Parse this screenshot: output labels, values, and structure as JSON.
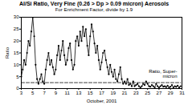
{
  "chart_data": {
    "type": "line",
    "title": "Al/Si Ratio, Very Fine (0.26 > Dp > 0.09 micron) Aerosols",
    "subtitle": "For Enrichment Factor, divide by 1.9",
    "x_label": "October, 2001",
    "y_label": "Ratio",
    "x": [
      3,
      3.25,
      3.5,
      3.75,
      4,
      4.25,
      4.5,
      4.75,
      5,
      5.25,
      5.5,
      5.75,
      6,
      6.25,
      6.5,
      6.75,
      7,
      7.25,
      7.5,
      7.75,
      8,
      8.25,
      8.5,
      8.75,
      9,
      9.25,
      9.5,
      9.75,
      10,
      10.25,
      10.5,
      10.75,
      11,
      11.25,
      11.5,
      11.75,
      12,
      12.25,
      12.5,
      12.75,
      13,
      13.25,
      13.5,
      13.75,
      14,
      14.25,
      14.5,
      14.75,
      15,
      15.25,
      15.5,
      15.75,
      16,
      16.25,
      16.5,
      16.75,
      17,
      17.25,
      17.5,
      17.75,
      18,
      18.25,
      18.5,
      18.75,
      19,
      19.25,
      19.5,
      19.75,
      20,
      20.25,
      20.5,
      20.75,
      21,
      21.25,
      21.5,
      21.75,
      22,
      22.25,
      22.5,
      22.75,
      23,
      23.25,
      23.5,
      23.75,
      24,
      24.25,
      24.5,
      24.75,
      25,
      25.25,
      25.5,
      25.75,
      26,
      26.25,
      26.5,
      26.75,
      27,
      27.25,
      27.5,
      27.75,
      28,
      28.25,
      28.5,
      28.75,
      29,
      29.25,
      29.5,
      29.75,
      30,
      30.25,
      30.5,
      30.75
    ],
    "series": [
      {
        "name": "Al/Si Ratio",
        "color": "#000000",
        "marker": "circle",
        "line_style": "solid",
        "values": [
          5,
          8,
          12,
          10,
          15,
          20,
          18,
          24,
          30,
          22,
          10,
          4,
          2,
          4,
          6,
          3,
          2,
          8,
          12,
          15,
          10,
          12,
          9,
          6,
          8,
          14,
          18,
          12,
          16,
          20,
          14,
          10,
          12,
          17,
          19,
          12,
          8,
          10,
          20,
          22,
          18,
          24,
          20,
          26,
          22,
          25,
          18,
          14,
          22,
          27,
          24,
          19,
          15,
          18,
          12,
          8,
          11,
          15,
          16,
          12,
          9,
          6,
          10,
          7,
          5,
          8,
          4,
          3,
          6,
          9,
          4,
          2,
          3,
          2,
          4,
          1.5,
          2,
          1,
          3,
          1,
          1.5,
          2,
          1,
          0.5,
          1,
          2,
          1.5,
          3,
          2,
          1,
          0.8,
          1.5,
          1,
          0.5,
          2,
          1,
          0.5,
          1,
          1.5,
          0.8,
          1,
          0.6,
          1.2,
          0.5,
          0.8,
          1.5,
          0.5,
          1,
          0.7,
          1.2,
          0.5,
          1
        ]
      },
      {
        "name": "Ratio, Super-micron",
        "color": "#000000",
        "marker": "none",
        "line_style": "dashed",
        "values": [
          2.5,
          2.5,
          2.5,
          2.5,
          2.5,
          2.5,
          2.5,
          2.5,
          2.5,
          2.5,
          2.5,
          2.5,
          2.5,
          2.5,
          2.5,
          2.5,
          2.5,
          2.5,
          2.5,
          2.5,
          2.5,
          2.5,
          2.5,
          2.5,
          2.5,
          2.5,
          2.5,
          2.5,
          2.5,
          2.5,
          2.5,
          2.5,
          2.5,
          2.5,
          2.5,
          2.5,
          2.5,
          2.5,
          2.5,
          2.5,
          2.5,
          2.5,
          2.5,
          2.5,
          2.5,
          2.5,
          2.5,
          2.5,
          2.5,
          2.5,
          2.5,
          2.5,
          2.5,
          2.5,
          2.5,
          2.5,
          2.5,
          2.5,
          2.5,
          2.5,
          2.5,
          2.5,
          2.5,
          2.5,
          2.5,
          2.5,
          2.5,
          2.5,
          2.5,
          2.5,
          2.5,
          2.5,
          2.5,
          2.5,
          2.5,
          2.5,
          2.5,
          2.5,
          2.5,
          2.5,
          2.5,
          2.5,
          2.5,
          2.5,
          2.5,
          2.5,
          2.5,
          2.5,
          2.5,
          2.5,
          2.5,
          2.5,
          2.5,
          2.5,
          2.5,
          2.5,
          2.5,
          2.5,
          2.5,
          2.5,
          2.5,
          2.5,
          2.5,
          2.5,
          2.5,
          2.5,
          2.5,
          2.5,
          2.5,
          2.5,
          2.5,
          2.5
        ]
      }
    ],
    "xlim": [
      3,
      31
    ],
    "xticks": [
      3,
      5,
      7,
      9,
      11,
      13,
      15,
      17,
      19,
      21,
      23,
      25,
      27,
      29,
      31
    ],
    "ylim": [
      0,
      30
    ],
    "yticks": [
      0,
      5,
      10,
      15,
      20,
      25,
      30
    ],
    "grid": false
  }
}
